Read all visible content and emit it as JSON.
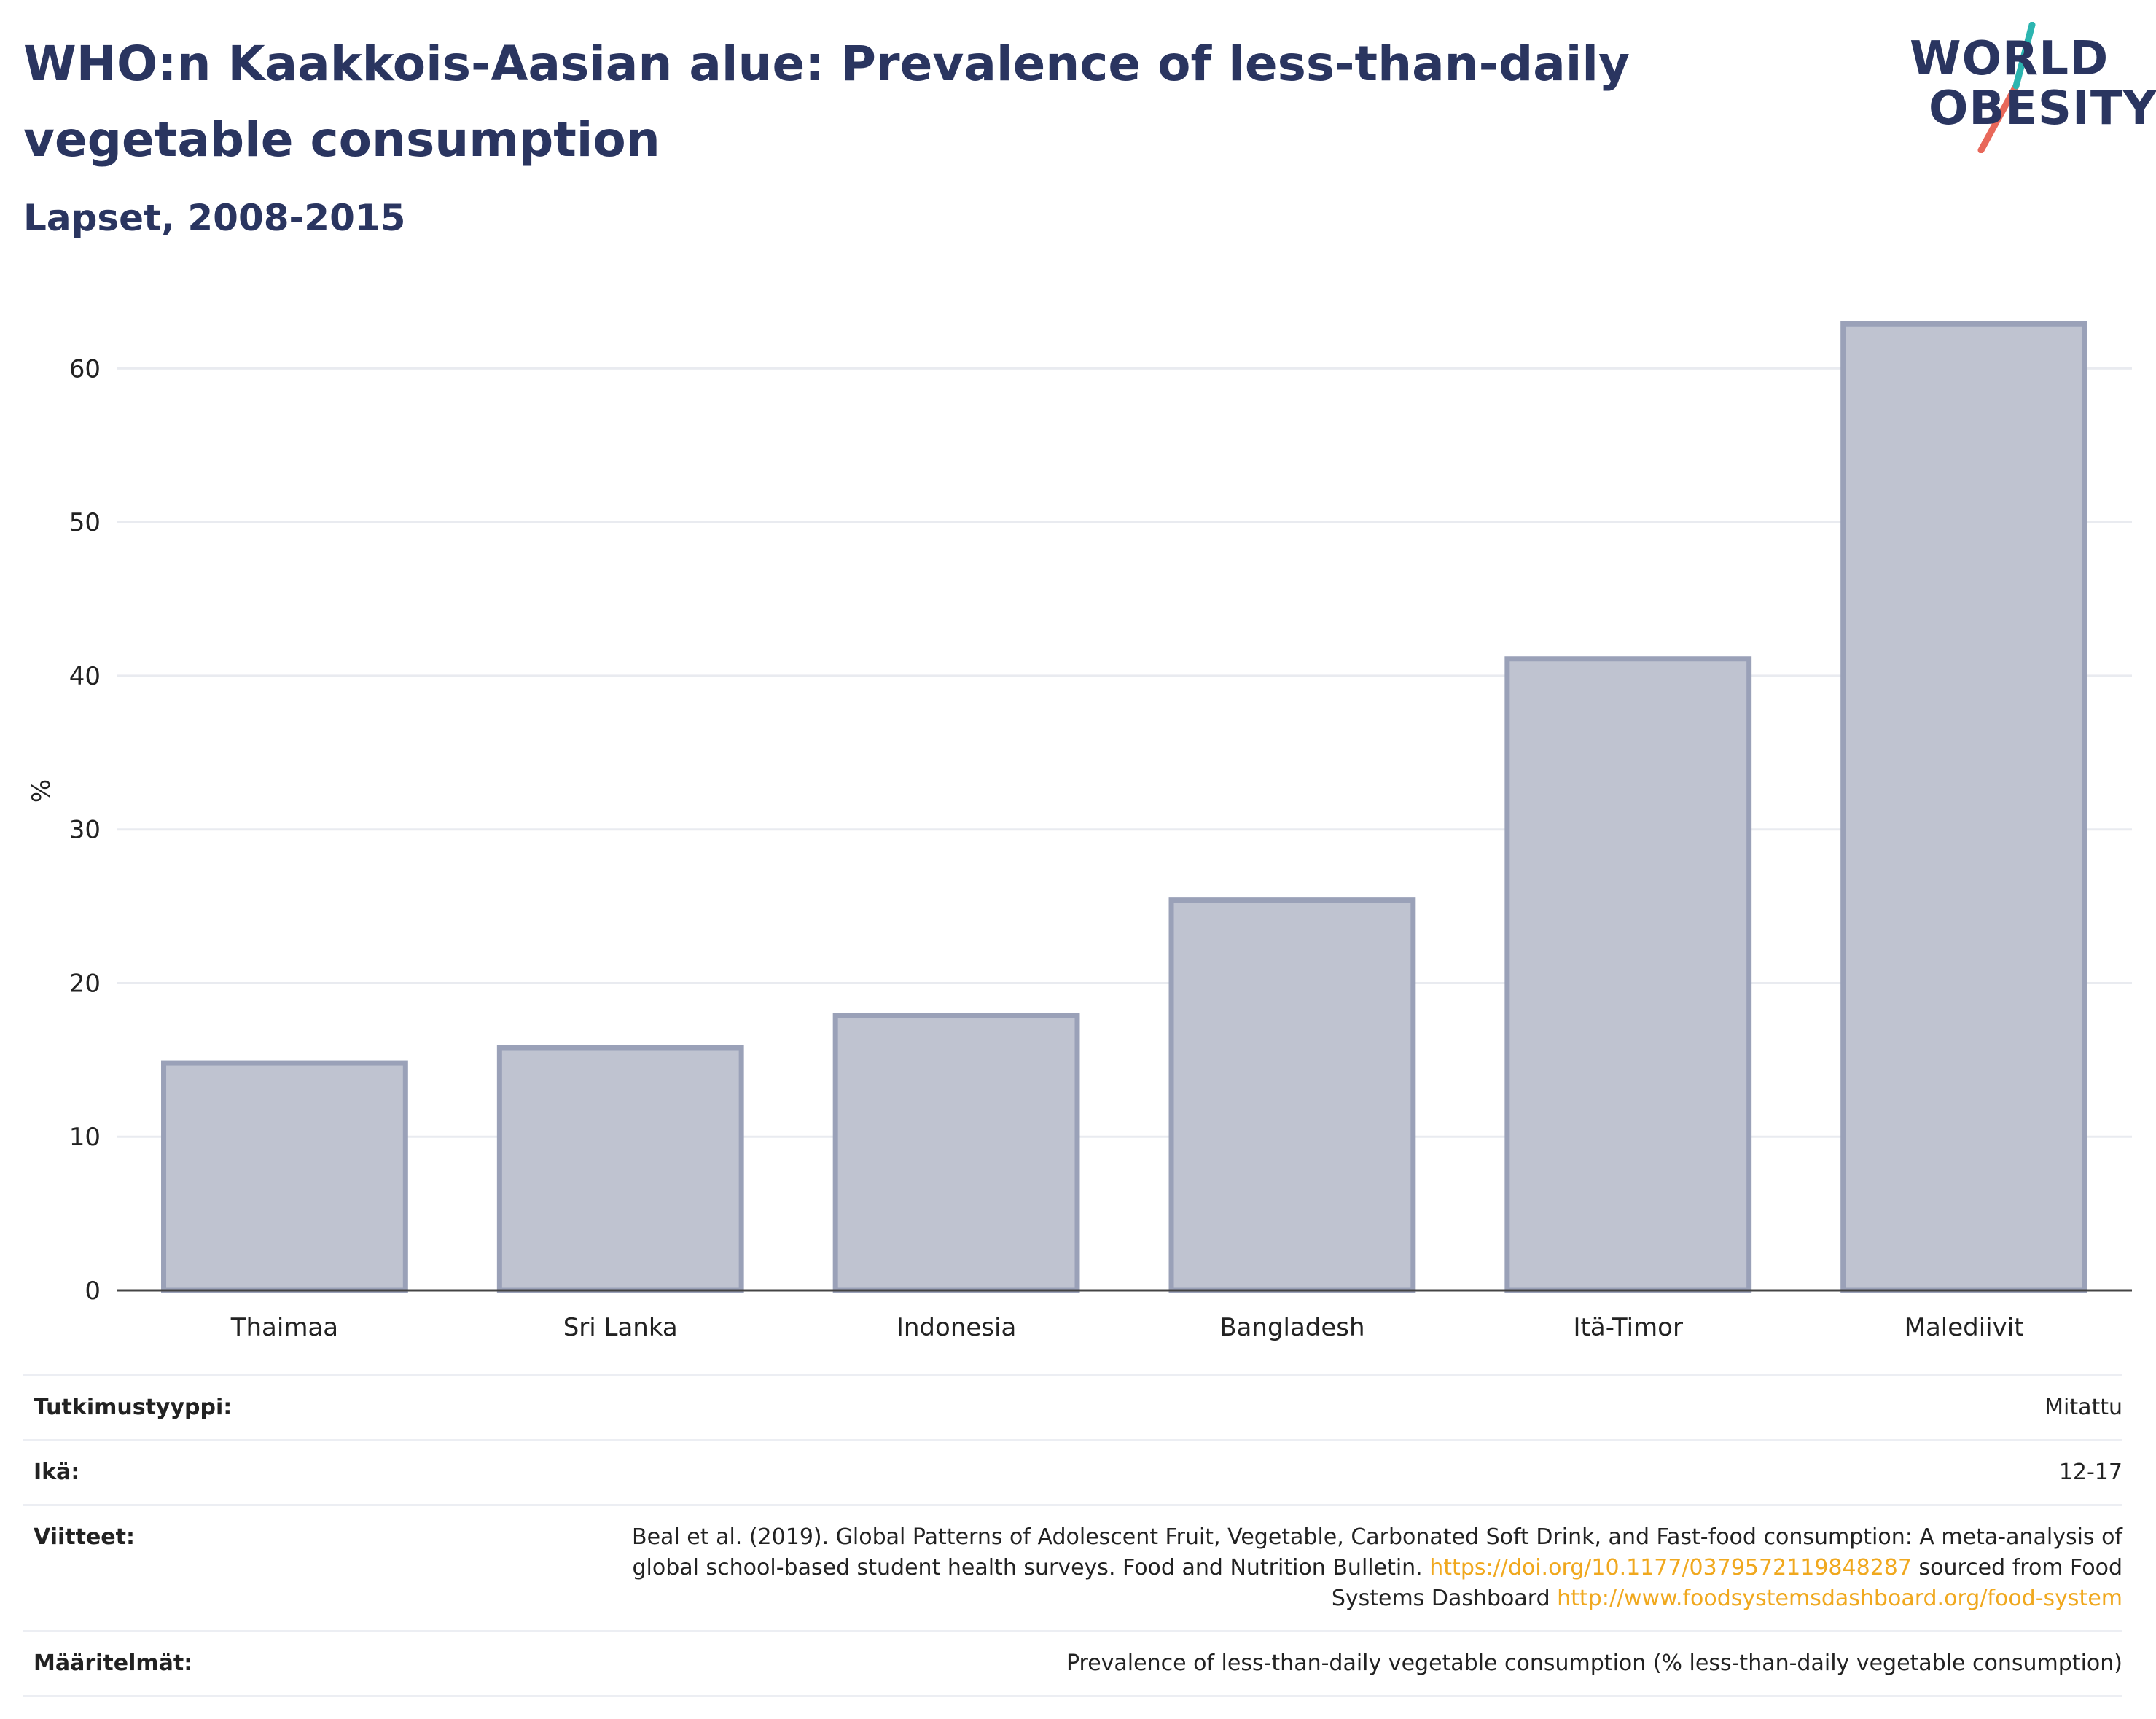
{
  "header": {
    "title": "WHO:n Kaakkois-Aasian alue: Prevalence of less-than-daily vegetable consumption",
    "subtitle": "Lapset, 2008-2015"
  },
  "logo": {
    "line1": "WORLD",
    "line2": "OBESITY"
  },
  "chart_data": {
    "type": "bar",
    "categories": [
      "Thaimaa",
      "Sri Lanka",
      "Indonesia",
      "Bangladesh",
      "Itä-Timor",
      "Malediivit"
    ],
    "values": [
      14.8,
      15.8,
      17.9,
      25.4,
      41.1,
      62.9
    ],
    "ylabel": "%",
    "xlabel": "",
    "ylim": [
      0,
      65
    ],
    "yticks": [
      0,
      10,
      20,
      30,
      40,
      50,
      60
    ],
    "grid": true,
    "bar_color": "#bfc3d0",
    "bar_edge_color": "#9aa1b8"
  },
  "info": {
    "study_type": {
      "label": "Tutkimustyyppi:",
      "value": "Mitattu"
    },
    "age": {
      "label": "Ikä:",
      "value": "12-17"
    },
    "refs": {
      "label": "Viitteet:",
      "text1": "Beal et al. (2019). Global Patterns of Adolescent Fruit, Vegetable, Carbonated Soft Drink, and Fast-food consumption: A meta-analysis of global school-based student health surveys. Food and Nutrition Bulletin.",
      "link1": "https://doi.org/10.1177/0379572119848287",
      "text2": "sourced from Food Systems Dashboard",
      "link2": "http://www.foodsystemsdashboard.org/food-system"
    },
    "definitions": {
      "label": "Määritelmät:",
      "value": "Prevalence of less-than-daily vegetable consumption (% less-than-daily vegetable consumption)"
    }
  },
  "colors": {
    "title": "#2a3560",
    "link": "#f0a81e",
    "logo_teal": "#2cb5b0",
    "logo_coral": "#e8685a"
  }
}
